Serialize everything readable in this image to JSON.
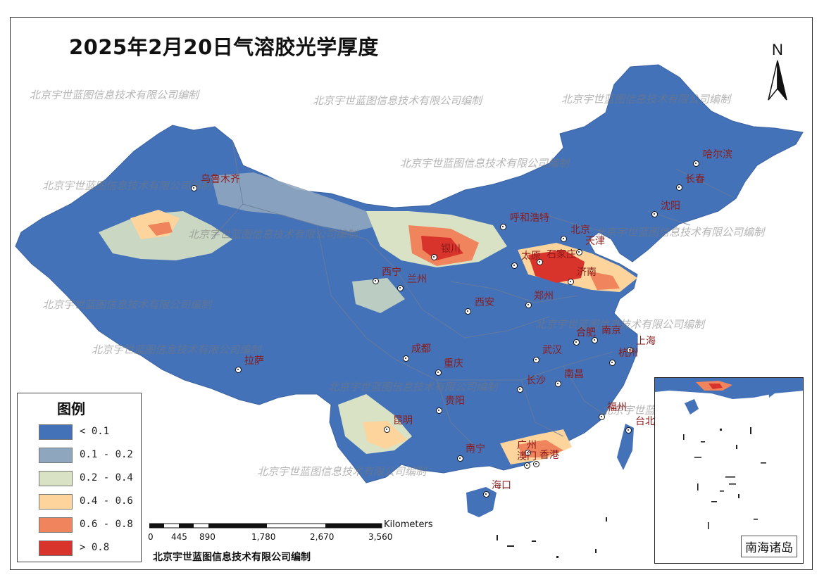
{
  "title": "2025年2月20日气溶胶光学厚度",
  "watermark_text": "北京宇世蓝图信息技术有限公司编制",
  "legend": {
    "title": "图例",
    "items": [
      {
        "label": "< 0.1",
        "color": "#4472b8"
      },
      {
        "label": "0.1 - 0.2",
        "color": "#8fa6bf"
      },
      {
        "label": "0.2 - 0.4",
        "color": "#d9e2c4"
      },
      {
        "label": "0.4 - 0.6",
        "color": "#fdd49c"
      },
      {
        "label": "0.6 - 0.8",
        "color": "#f0845c"
      },
      {
        "label": "> 0.8",
        "color": "#d9342b"
      }
    ]
  },
  "north_label": "N",
  "scale": {
    "unit": "Kilometers",
    "ticks": [
      "0",
      "445",
      "890",
      "1,780",
      "2,670",
      "3,560"
    ]
  },
  "credit": "北京宇世蓝图信息技术有限公司编制",
  "inset_label": "南海诸岛",
  "cities": [
    {
      "name": "乌鲁木齐"
    },
    {
      "name": "哈尔滨"
    },
    {
      "name": "长春"
    },
    {
      "name": "沈阳"
    },
    {
      "name": "呼和浩特"
    },
    {
      "name": "北京"
    },
    {
      "name": "天津"
    },
    {
      "name": "银川"
    },
    {
      "name": "太原"
    },
    {
      "name": "石家庄"
    },
    {
      "name": "济南"
    },
    {
      "name": "西宁"
    },
    {
      "name": "兰州"
    },
    {
      "name": "西安"
    },
    {
      "name": "郑州"
    },
    {
      "name": "合肥"
    },
    {
      "name": "南京"
    },
    {
      "name": "上海"
    },
    {
      "name": "杭州"
    },
    {
      "name": "成都"
    },
    {
      "name": "重庆"
    },
    {
      "name": "武汉"
    },
    {
      "name": "拉萨"
    },
    {
      "name": "长沙"
    },
    {
      "name": "南昌"
    },
    {
      "name": "贵阳"
    },
    {
      "name": "福州"
    },
    {
      "name": "台北"
    },
    {
      "name": "昆明"
    },
    {
      "name": "南宁"
    },
    {
      "name": "广州"
    },
    {
      "name": "香港"
    },
    {
      "name": "澳门"
    },
    {
      "name": "海口"
    }
  ]
}
